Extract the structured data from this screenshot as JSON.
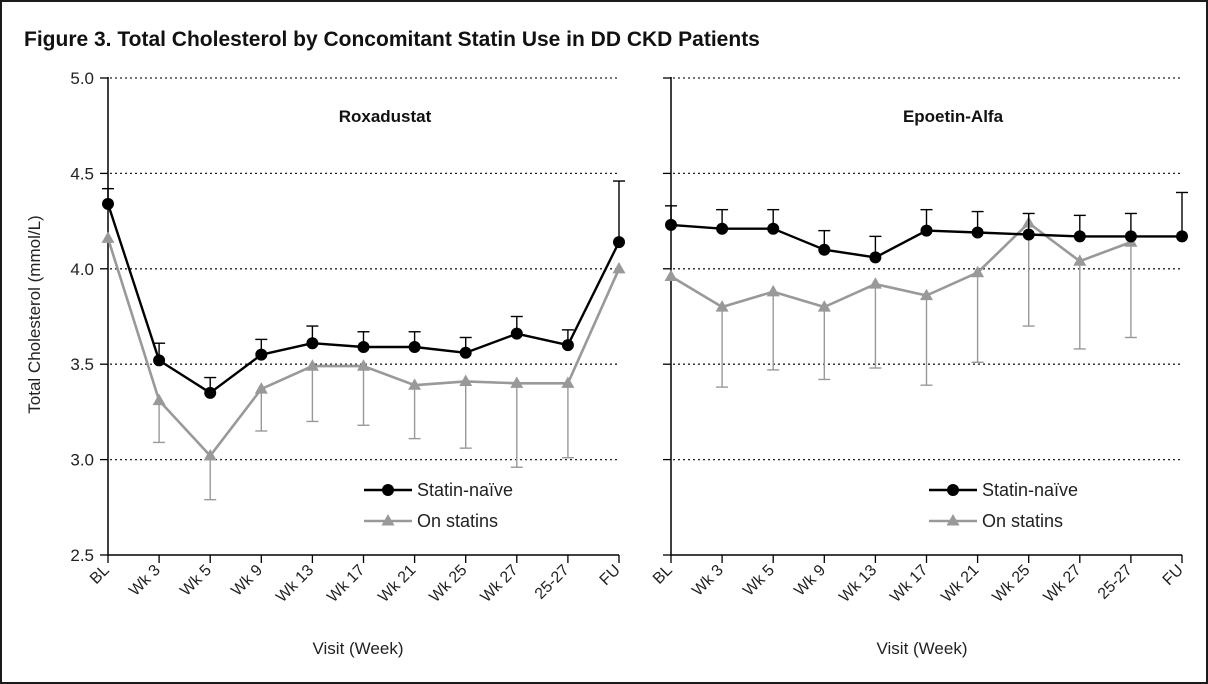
{
  "figure": {
    "title": "Figure 3. Total Cholesterol by Concomitant Statin Use in DD CKD Patients"
  },
  "chart_data": [
    {
      "type": "line",
      "title": "Roxadustat",
      "xlabel": "Visit (Week)",
      "ylabel": "Total Cholesterol (mmol/L)",
      "ylim": [
        2.5,
        5.0
      ],
      "yticks": [
        "2.5",
        "3.0",
        "3.5",
        "4.0",
        "4.5",
        "5.0"
      ],
      "grid": "horizontal dotted",
      "legend_position": "bottom-right",
      "categories": [
        "BL",
        "Wk 3",
        "Wk 5",
        "Wk 9",
        "Wk 13",
        "Wk 17",
        "Wk 21",
        "Wk 25",
        "Wk 27",
        "25-27",
        "FU"
      ],
      "series": [
        {
          "name": "Statin-naïve",
          "color": "#000000",
          "marker": "circle",
          "values": [
            4.34,
            3.52,
            3.35,
            3.55,
            3.61,
            3.59,
            3.59,
            3.56,
            3.66,
            3.6,
            4.14
          ],
          "error_upper": [
            4.42,
            3.61,
            3.43,
            3.63,
            3.7,
            3.67,
            3.67,
            3.64,
            3.75,
            3.68,
            4.46
          ],
          "error_lower": [
            null,
            null,
            null,
            null,
            null,
            null,
            null,
            null,
            null,
            null,
            null
          ]
        },
        {
          "name": "On statins",
          "color": "#999999",
          "marker": "triangle",
          "values": [
            4.16,
            3.31,
            3.02,
            3.37,
            3.49,
            3.49,
            3.39,
            3.41,
            3.4,
            3.4,
            4.0
          ],
          "error_upper": [
            null,
            null,
            null,
            null,
            null,
            null,
            null,
            null,
            null,
            null,
            null
          ],
          "error_lower": [
            null,
            3.09,
            2.79,
            3.15,
            3.2,
            3.18,
            3.11,
            3.06,
            2.96,
            3.01,
            null
          ]
        }
      ]
    },
    {
      "type": "line",
      "title": "Epoetin-Alfa",
      "xlabel": "Visit (Week)",
      "ylabel": "",
      "ylim": [
        2.5,
        5.0
      ],
      "yticks": [],
      "grid": "horizontal dotted",
      "legend_position": "bottom-right",
      "categories": [
        "BL",
        "Wk 3",
        "Wk 5",
        "Wk 9",
        "Wk 13",
        "Wk 17",
        "Wk 21",
        "Wk 25",
        "Wk 27",
        "25-27",
        "FU"
      ],
      "series": [
        {
          "name": "Statin-naïve",
          "color": "#000000",
          "marker": "circle",
          "values": [
            4.23,
            4.21,
            4.21,
            4.1,
            4.06,
            4.2,
            4.19,
            4.18,
            4.17,
            4.17,
            4.17
          ],
          "error_upper": [
            4.33,
            4.31,
            4.31,
            4.2,
            4.17,
            4.31,
            4.3,
            4.29,
            4.28,
            4.29,
            4.4
          ],
          "error_lower": [
            null,
            null,
            null,
            null,
            null,
            null,
            null,
            null,
            null,
            null,
            null
          ]
        },
        {
          "name": "On statins",
          "color": "#999999",
          "marker": "triangle",
          "values": [
            3.96,
            3.8,
            3.88,
            3.8,
            3.92,
            3.86,
            3.98,
            4.24,
            4.04,
            4.14,
            null
          ],
          "error_upper": [
            null,
            null,
            null,
            null,
            null,
            null,
            null,
            null,
            null,
            null,
            null
          ],
          "error_lower": [
            null,
            3.38,
            3.47,
            3.42,
            3.48,
            3.39,
            3.51,
            3.7,
            3.58,
            3.64,
            null
          ]
        }
      ]
    }
  ]
}
